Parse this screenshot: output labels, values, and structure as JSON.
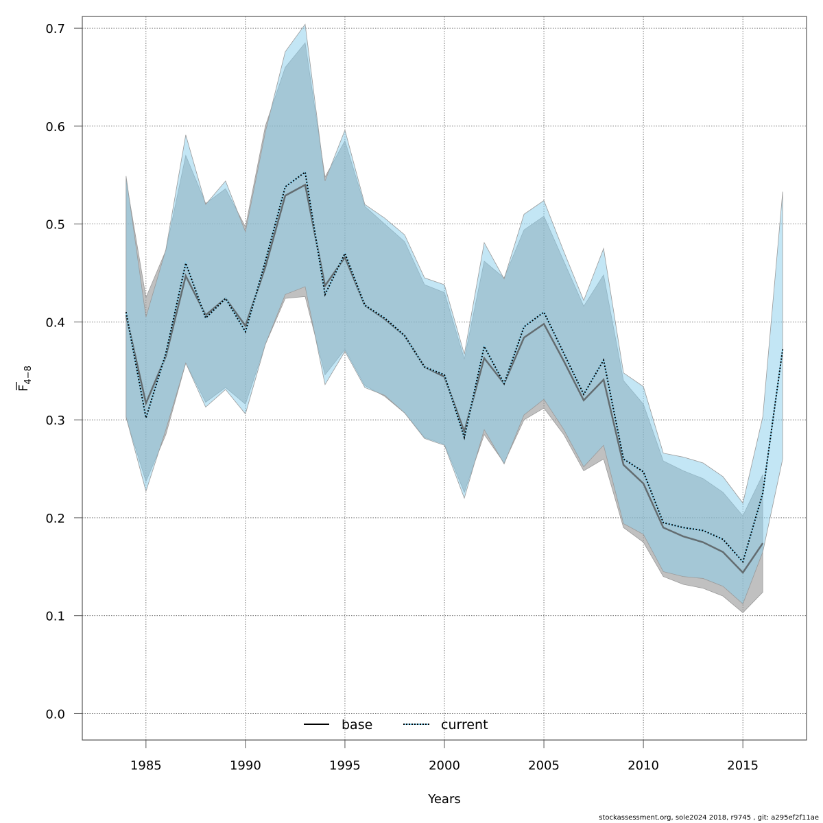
{
  "chart_data": {
    "type": "area",
    "title": "",
    "xlabel": "Years",
    "ylabel": "F̄ 4–8",
    "ylabel_main": "F",
    "ylabel_sub": "4−8",
    "xlim": [
      1981.8,
      2018.2
    ],
    "ylim": [
      -0.027,
      0.712
    ],
    "x_ticks": [
      1985,
      1990,
      1995,
      2000,
      2005,
      2010,
      2015
    ],
    "x_tick_labels": [
      "1985",
      "1990",
      "1995",
      "2000",
      "2005",
      "2010",
      "2015"
    ],
    "y_ticks": [
      0.0,
      0.1,
      0.2,
      0.3,
      0.4,
      0.5,
      0.6,
      0.7
    ],
    "y_tick_labels": [
      "0.0",
      "0.1",
      "0.2",
      "0.3",
      "0.4",
      "0.5",
      "0.6",
      "0.7"
    ],
    "grid": true,
    "legend": {
      "position": "bottom-center",
      "entries": [
        {
          "name": "base",
          "style": "solid",
          "color": "#000000"
        },
        {
          "name": "current",
          "style": "dotted",
          "color": "#000000",
          "highlight": "#87ceeb"
        }
      ]
    },
    "series": [
      {
        "name": "base",
        "band_color": "#8c8c8c",
        "line_color": "#4d4d4d",
        "x": [
          1984,
          1985,
          1986,
          1987,
          1988,
          1989,
          1990,
          1991,
          1992,
          1993,
          1994,
          1995,
          1996,
          1997,
          1998,
          1999,
          2000,
          2001,
          2002,
          2003,
          2004,
          2005,
          2006,
          2007,
          2008,
          2009,
          2010,
          2011,
          2012,
          2013,
          2014,
          2015,
          2016
        ],
        "values": [
          0.407,
          0.317,
          0.365,
          0.447,
          0.407,
          0.424,
          0.396,
          0.456,
          0.529,
          0.54,
          0.437,
          0.466,
          0.417,
          0.403,
          0.386,
          0.354,
          0.344,
          0.288,
          0.363,
          0.337,
          0.384,
          0.398,
          0.36,
          0.32,
          0.341,
          0.254,
          0.235,
          0.19,
          0.181,
          0.175,
          0.165,
          0.144,
          0.174
        ],
        "upper": [
          0.545,
          0.425,
          0.473,
          0.57,
          0.521,
          0.536,
          0.497,
          0.6,
          0.66,
          0.685,
          0.548,
          0.585,
          0.518,
          0.5,
          0.482,
          0.438,
          0.43,
          0.362,
          0.462,
          0.445,
          0.494,
          0.508,
          0.462,
          0.416,
          0.448,
          0.34,
          0.316,
          0.258,
          0.248,
          0.24,
          0.226,
          0.202,
          0.244
        ],
        "lower": [
          0.302,
          0.237,
          0.285,
          0.358,
          0.318,
          0.333,
          0.316,
          0.377,
          0.424,
          0.426,
          0.346,
          0.372,
          0.335,
          0.324,
          0.307,
          0.282,
          0.275,
          0.226,
          0.285,
          0.256,
          0.3,
          0.312,
          0.285,
          0.248,
          0.26,
          0.19,
          0.175,
          0.14,
          0.132,
          0.128,
          0.12,
          0.103,
          0.124
        ]
      },
      {
        "name": "current",
        "band_color": "#87ceeb",
        "line_color": "#000000",
        "x": [
          1984,
          1985,
          1986,
          1987,
          1988,
          1989,
          1990,
          1991,
          1992,
          1993,
          1994,
          1995,
          1996,
          1997,
          1998,
          1999,
          2000,
          2001,
          2002,
          2003,
          2004,
          2005,
          2006,
          2007,
          2008,
          2009,
          2010,
          2011,
          2012,
          2013,
          2014,
          2015,
          2016,
          2017
        ],
        "values": [
          0.41,
          0.302,
          0.368,
          0.46,
          0.404,
          0.424,
          0.39,
          0.462,
          0.538,
          0.553,
          0.428,
          0.47,
          0.417,
          0.404,
          0.386,
          0.354,
          0.346,
          0.282,
          0.375,
          0.337,
          0.395,
          0.41,
          0.368,
          0.326,
          0.361,
          0.26,
          0.247,
          0.195,
          0.19,
          0.187,
          0.178,
          0.155,
          0.225,
          0.372
        ],
        "upper": [
          0.549,
          0.405,
          0.474,
          0.591,
          0.52,
          0.544,
          0.492,
          0.594,
          0.676,
          0.704,
          0.544,
          0.596,
          0.52,
          0.506,
          0.489,
          0.445,
          0.438,
          0.367,
          0.481,
          0.444,
          0.51,
          0.524,
          0.472,
          0.422,
          0.475,
          0.348,
          0.334,
          0.266,
          0.262,
          0.256,
          0.242,
          0.215,
          0.303,
          0.533
        ],
        "lower": [
          0.303,
          0.227,
          0.29,
          0.358,
          0.313,
          0.331,
          0.306,
          0.377,
          0.428,
          0.436,
          0.336,
          0.37,
          0.333,
          0.325,
          0.307,
          0.281,
          0.274,
          0.22,
          0.29,
          0.255,
          0.305,
          0.321,
          0.29,
          0.252,
          0.274,
          0.194,
          0.183,
          0.145,
          0.14,
          0.138,
          0.13,
          0.112,
          0.165,
          0.26
        ]
      }
    ]
  },
  "footer": {
    "text": "stockassessment.org, sole2024  2018, r9745 , git: a295ef2f11ae"
  }
}
